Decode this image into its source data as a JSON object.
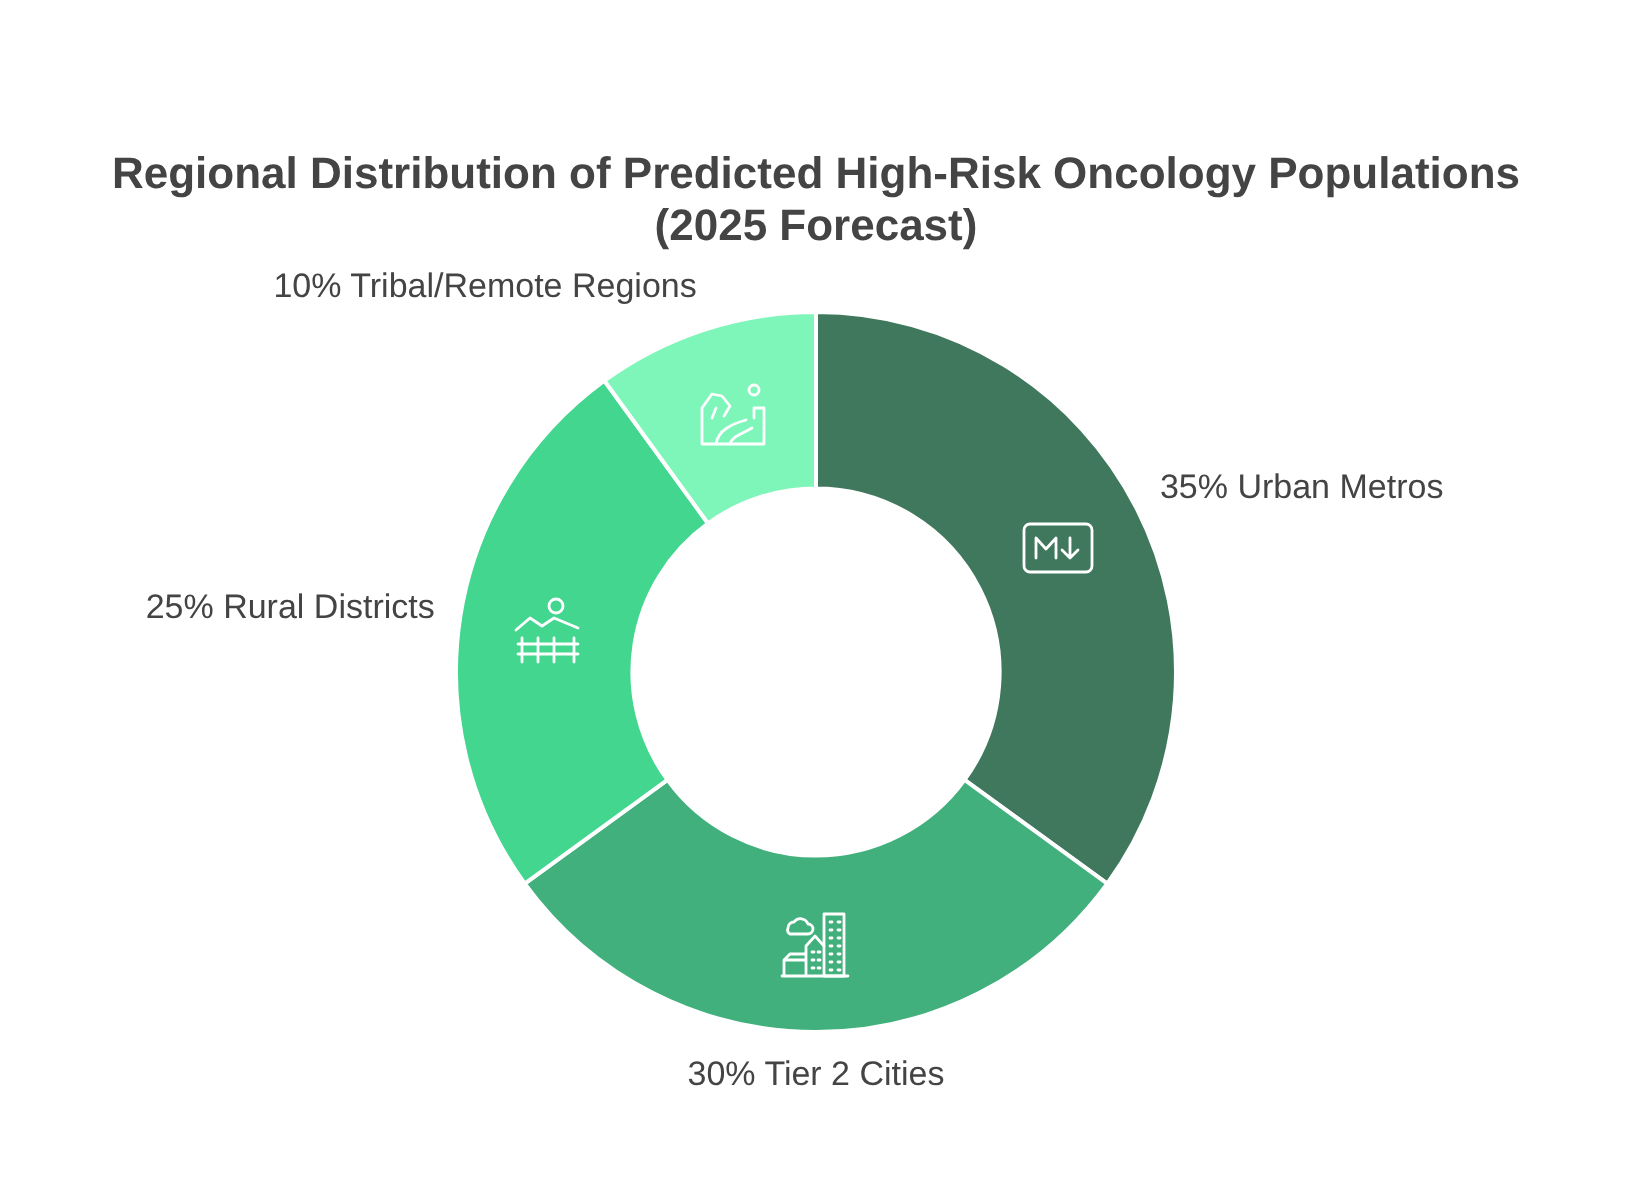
{
  "chart_data": {
    "type": "donut",
    "title": "Regional Distribution of Predicted High-Risk Oncology Populations (2025 Forecast)",
    "categories": [
      "Urban Metros",
      "Tier 2 Cities",
      "Rural Districts",
      "Tribal/Remote Regions"
    ],
    "values": [
      35,
      30,
      25,
      10
    ],
    "value_labels": [
      "35%",
      "30%",
      "25%",
      "10%"
    ],
    "colors": [
      "#3f785c",
      "#41b07c",
      "#42d68f",
      "#7ef6b9"
    ]
  }
}
